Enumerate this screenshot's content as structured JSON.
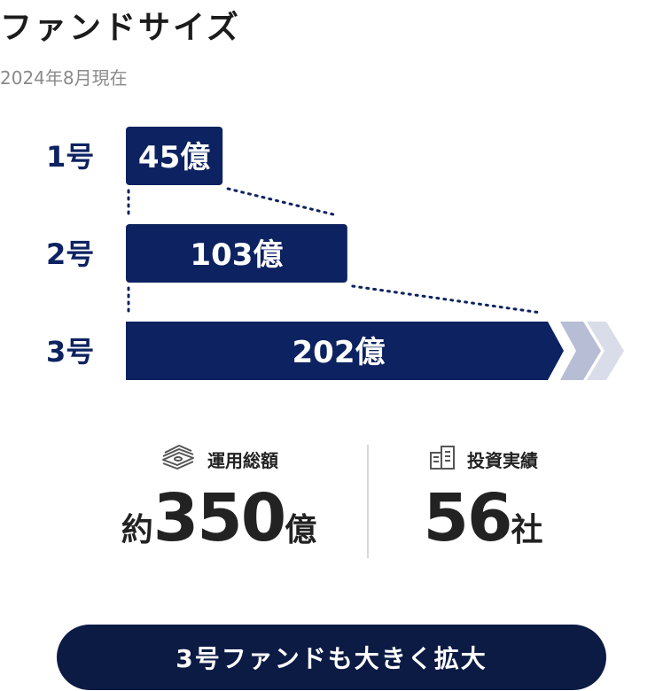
{
  "header": {
    "title": "ファンドサイズ",
    "subtitle": "2024年8月現在"
  },
  "colors": {
    "bar": "#0d2260",
    "arrow_light_1": "#b6bdd4",
    "arrow_light_2": "#d9dde9",
    "dots": "#0d2260"
  },
  "chart_data": {
    "type": "bar",
    "orientation": "horizontal",
    "categories": [
      "1号",
      "2号",
      "3号"
    ],
    "values": [
      45,
      103,
      202
    ],
    "value_labels": [
      "45億",
      "103億",
      "202億"
    ],
    "unit": "億",
    "title": "",
    "xlabel": "",
    "ylabel": "",
    "grid": false
  },
  "stats": {
    "aum": {
      "icon": "money-stack-icon",
      "label": "運用総額",
      "prefix": "約",
      "value": "350",
      "unit": "億"
    },
    "investments": {
      "icon": "building-icon",
      "label": "投資実績",
      "value": "56",
      "unit": "社"
    }
  },
  "cta": {
    "label": "3号ファンドも大きく拡大"
  }
}
